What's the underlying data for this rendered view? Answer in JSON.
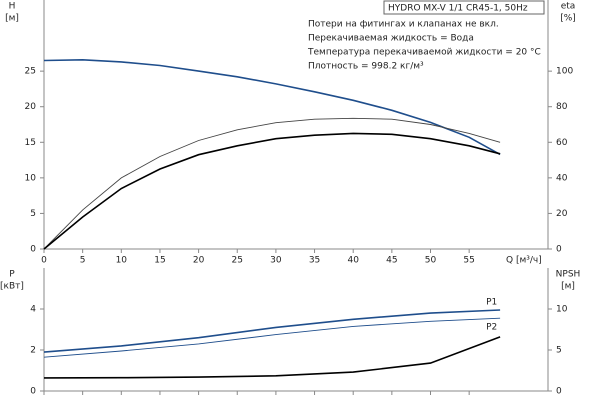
{
  "chart_data": [
    {
      "type": "line",
      "title": "HYDRO MX-V 1/1 CR45-1, 50Hz",
      "annotations": [
        "Потери на фитингах и клапанах не вкл.",
        "Перекачиваемая жидкость = Вода",
        "Температура перекачиваемой жидкости = 20 °C",
        "Плотность = 998.2 кг/м³"
      ],
      "x_label": "Q [м³/ч]",
      "y_label": [
        "H",
        "[м]"
      ],
      "y2_label": [
        "eta",
        "[%]"
      ],
      "x": [
        0,
        5,
        10,
        15,
        20,
        25,
        30,
        35,
        40,
        45,
        50,
        55,
        59
      ],
      "xlim": [
        0,
        65.2
      ],
      "xticks": [
        0,
        5,
        10,
        15,
        20,
        25,
        30,
        35,
        40,
        45,
        50,
        55
      ],
      "ylim": [
        0,
        35
      ],
      "yticks": [
        0,
        5,
        10,
        15,
        20,
        25
      ],
      "y2lim": [
        0,
        140
      ],
      "y2ticks": [
        0,
        20,
        40,
        60,
        80,
        100
      ],
      "series": [
        {
          "color": "#1f4e8c",
          "values": [
            26.5,
            26.6,
            26.3,
            25.8,
            25.0,
            24.2,
            23.2,
            22.1,
            20.9,
            19.5,
            17.8,
            15.7,
            13.3
          ]
        },
        {
          "color": "#444444",
          "axis": "y2",
          "values": [
            0,
            22,
            40,
            52,
            61,
            67,
            71,
            73,
            73.5,
            73,
            70,
            65,
            60
          ]
        },
        {
          "color": "#000000",
          "axis": "y2",
          "values": [
            0,
            18,
            34,
            45,
            53,
            58,
            62,
            64,
            65,
            64.5,
            62,
            58,
            53.5
          ]
        }
      ]
    },
    {
      "type": "line",
      "y_label": [
        "P",
        "[кВт]"
      ],
      "y2_label": [
        "NPSH",
        "[м]"
      ],
      "x": [
        0,
        10,
        20,
        30,
        40,
        50,
        59
      ],
      "xlim": [
        0,
        65.2
      ],
      "xticks": [
        0,
        5,
        10,
        15,
        20,
        25,
        30,
        35,
        40,
        45,
        50,
        55
      ],
      "ylim": [
        0,
        6
      ],
      "yticks": [
        0,
        2,
        4
      ],
      "y2lim": [
        0,
        15
      ],
      "y2ticks": [
        0,
        5,
        10
      ],
      "series": [
        {
          "name": "P1",
          "color": "#1f4e8c",
          "values": [
            1.9,
            2.2,
            2.6,
            3.1,
            3.5,
            3.8,
            3.95
          ]
        },
        {
          "name": "P2",
          "color": "#1f4e8c",
          "values": [
            1.65,
            1.95,
            2.3,
            2.75,
            3.15,
            3.4,
            3.55
          ]
        },
        {
          "color": "#000000",
          "axis": "y2",
          "values": [
            1.6,
            1.62,
            1.7,
            1.85,
            2.3,
            3.4,
            6.6
          ]
        }
      ]
    }
  ]
}
